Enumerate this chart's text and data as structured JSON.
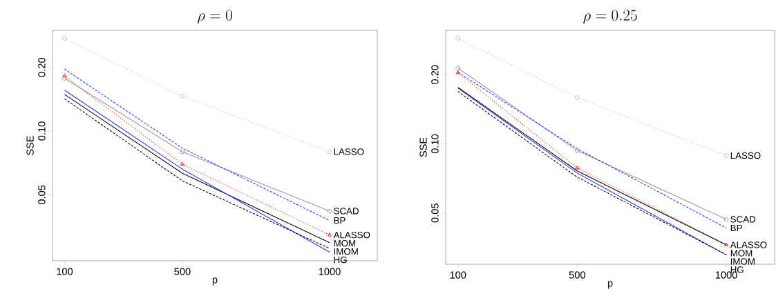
{
  "chart_data": [
    {
      "type": "line",
      "title": "\\rho = 0",
      "xlabel": "p",
      "ylabel": "SSE",
      "log": "y",
      "x": [
        100,
        500,
        1000
      ],
      "xlim": [
        59,
        1162
      ],
      "xticks": [
        100,
        500,
        1000
      ],
      "ylim": [
        0.0244,
        0.299
      ],
      "yticks": [
        {
          "value": 0.05,
          "label": "0.05"
        },
        {
          "value": 0.1,
          "label": "0.10"
        },
        {
          "value": 0.2,
          "label": "0.20"
        }
      ],
      "series": [
        {
          "name": "LASSO",
          "color": "#bbbbbb",
          "marker": "circle",
          "line_style": "dotted",
          "values": [
            0.274,
            0.146,
            0.0799
          ]
        },
        {
          "name": "SCAD",
          "color": "#999999",
          "marker": "circle",
          "line_style": "solid",
          "values": [
            0.1775,
            0.0798,
            0.0419
          ]
        },
        {
          "name": "BP",
          "color": "#3333ff",
          "marker": "none",
          "line_style": "dashed",
          "values": [
            0.196,
            0.083,
            0.0378
          ]
        },
        {
          "name": "ALASSO",
          "color": "#ff0000",
          "marker": "triangle",
          "line_style": "dotted",
          "values": [
            0.182,
            0.0697,
            0.0323
          ]
        },
        {
          "name": "MOM",
          "color": "#000000",
          "marker": "none",
          "line_style": "solid",
          "values": [
            0.149,
            0.0632,
            0.0297
          ]
        },
        {
          "name": "IMOM",
          "color": "#000000",
          "marker": "none",
          "line_style": "dashed",
          "values": [
            0.142,
            0.0582,
            0.0279
          ]
        },
        {
          "name": "HG",
          "color": "#3333ff",
          "marker": "none",
          "line_style": "solid",
          "values": [
            0.156,
            0.0661,
            0.0268
          ]
        }
      ]
    },
    {
      "type": "line",
      "title": "\\rho = 0.25",
      "xlabel": "p",
      "ylabel": "SSE",
      "log": "y",
      "x": [
        100,
        500,
        1000
      ],
      "xlim": [
        59,
        1162
      ],
      "xticks": [
        100,
        500,
        1000
      ],
      "ylim": [
        0.0299,
        0.312
      ],
      "yticks": [
        {
          "value": 0.05,
          "label": "0.05"
        },
        {
          "value": 0.1,
          "label": "0.10"
        },
        {
          "value": 0.2,
          "label": "0.20"
        }
      ],
      "series": [
        {
          "name": "LASSO",
          "color": "#bbbbbb",
          "marker": "circle",
          "line_style": "dotted",
          "values": [
            0.288,
            0.159,
            0.0889
          ]
        },
        {
          "name": "SCAD",
          "color": "#999999",
          "marker": "circle",
          "line_style": "solid",
          "values": [
            0.2136,
            0.0934,
            0.0469
          ]
        },
        {
          "name": "BP",
          "color": "#3333ff",
          "marker": "none",
          "line_style": "dashed",
          "values": [
            0.205,
            0.0952,
            0.043
          ]
        },
        {
          "name": "ALASSO",
          "color": "#ff0000",
          "marker": "triangle",
          "line_style": "dotted",
          "values": [
            0.204,
            0.0785,
            0.0363
          ]
        },
        {
          "name": "MOM",
          "color": "#000000",
          "marker": "none",
          "line_style": "solid",
          "values": [
            0.176,
            0.0762,
            0.0363
          ]
        },
        {
          "name": "IMOM",
          "color": "#000000",
          "marker": "none",
          "line_style": "dashed",
          "values": [
            0.169,
            0.0716,
            0.0329
          ]
        },
        {
          "name": "HG",
          "color": "#3333ff",
          "marker": "none",
          "line_style": "solid",
          "values": [
            0.1746,
            0.0746,
            0.0328
          ]
        }
      ]
    }
  ]
}
